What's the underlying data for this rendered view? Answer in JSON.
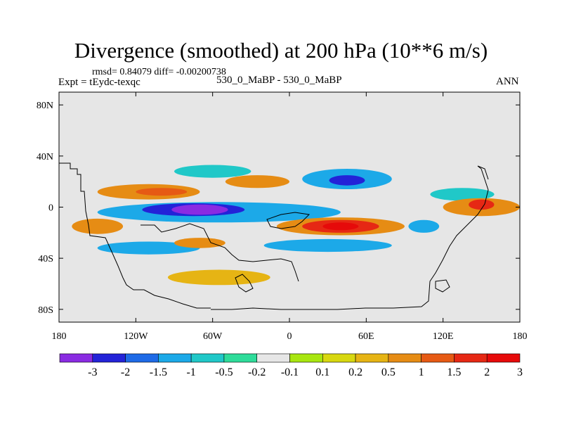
{
  "header": {
    "title": "Divergence (smoothed) at 200 hPa (10**6 m/s)",
    "stats": "rmsd= 0.84079 diff= -0.00200738",
    "experiment": "Expt = tEydc-texqc",
    "case": "530_0_MaBP - 530_0_MaBP",
    "season": "ANN"
  },
  "chart_data": {
    "type": "heatmap",
    "title": "Divergence (smoothed) at 200 hPa (10**6 m/s)",
    "xlabel": "",
    "ylabel": "",
    "xlim": [
      -180,
      180
    ],
    "ylim": [
      -90,
      90
    ],
    "x_ticks": [
      {
        "value": -180,
        "label": "180"
      },
      {
        "value": -120,
        "label": "120W"
      },
      {
        "value": -60,
        "label": "60W"
      },
      {
        "value": 0,
        "label": "0"
      },
      {
        "value": 60,
        "label": "60E"
      },
      {
        "value": 120,
        "label": "120E"
      },
      {
        "value": 180,
        "label": "180"
      }
    ],
    "y_ticks": [
      {
        "value": 80,
        "label": "80N"
      },
      {
        "value": 40,
        "label": "40N"
      },
      {
        "value": 0,
        "label": "0"
      },
      {
        "value": -40,
        "label": "40S"
      },
      {
        "value": -80,
        "label": "80S"
      }
    ],
    "colorbar": {
      "levels": [
        "-3",
        "-2",
        "-1.5",
        "-1",
        "-0.5",
        "-0.2",
        "-0.1",
        "0.1",
        "0.2",
        "0.5",
        "1",
        "1.5",
        "2",
        "3"
      ],
      "colors": [
        "#8a2be2",
        "#2323d8",
        "#1e6ae6",
        "#1ca9e8",
        "#20c8c8",
        "#2edc9a",
        "#e6e6e6",
        "#a8e610",
        "#d8d810",
        "#e6b414",
        "#e68c14",
        "#e65a14",
        "#e62814",
        "#e60a0a"
      ]
    },
    "regions": [
      {
        "level": "-1",
        "lon": -55,
        "lat": -4,
        "rlon": 95,
        "rlat": 8
      },
      {
        "level": "-2",
        "lon": -75,
        "lat": -2,
        "rlon": 40,
        "rlat": 5
      },
      {
        "level": "-3",
        "lon": -70,
        "lat": -2,
        "rlon": 22,
        "rlat": 4
      },
      {
        "level": "-1",
        "lon": 45,
        "lat": 22,
        "rlon": 35,
        "rlat": 8
      },
      {
        "level": "-2",
        "lon": 45,
        "lat": 21,
        "rlon": 14,
        "rlat": 4
      },
      {
        "level": "-1",
        "lon": 30,
        "lat": -30,
        "rlon": 50,
        "rlat": 5
      },
      {
        "level": "-1",
        "lon": -110,
        "lat": -32,
        "rlon": 40,
        "rlat": 5
      },
      {
        "level": "-0.5",
        "lon": -60,
        "lat": 28,
        "rlon": 30,
        "rlat": 5
      },
      {
        "level": "-0.5",
        "lon": 135,
        "lat": 10,
        "rlon": 25,
        "rlat": 5
      },
      {
        "level": "-1",
        "lon": 105,
        "lat": -15,
        "rlon": 12,
        "rlat": 5
      },
      {
        "level": "1",
        "lon": -110,
        "lat": 12,
        "rlon": 40,
        "rlat": 6
      },
      {
        "level": "1.5",
        "lon": -100,
        "lat": 12,
        "rlon": 20,
        "rlat": 3
      },
      {
        "level": "1",
        "lon": -150,
        "lat": -15,
        "rlon": 20,
        "rlat": 6
      },
      {
        "level": "1",
        "lon": 40,
        "lat": -15,
        "rlon": 50,
        "rlat": 7
      },
      {
        "level": "2",
        "lon": 40,
        "lat": -15,
        "rlon": 30,
        "rlat": 5
      },
      {
        "level": "3",
        "lon": 40,
        "lat": -15,
        "rlon": 14,
        "rlat": 3
      },
      {
        "level": "1",
        "lon": 150,
        "lat": 0,
        "rlon": 30,
        "rlat": 7
      },
      {
        "level": "2",
        "lon": 150,
        "lat": 2,
        "rlon": 10,
        "rlat": 4
      },
      {
        "level": "1",
        "lon": -25,
        "lat": 20,
        "rlon": 25,
        "rlat": 5
      },
      {
        "level": "1",
        "lon": -70,
        "lat": -28,
        "rlon": 20,
        "rlat": 4
      },
      {
        "level": "0.5",
        "lon": -55,
        "lat": -55,
        "rlon": 40,
        "rlat": 6
      }
    ]
  }
}
